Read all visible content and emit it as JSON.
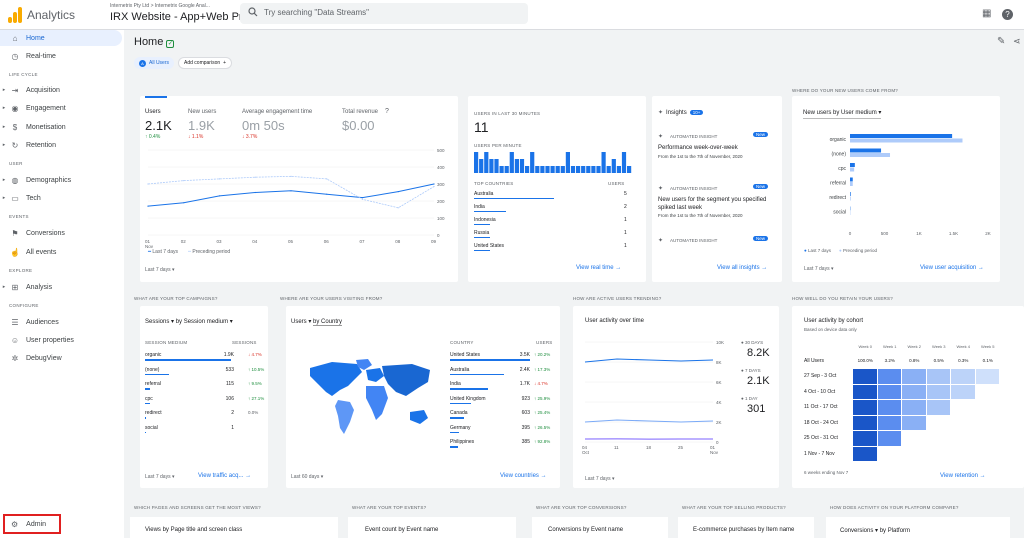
{
  "app": {
    "name": "Analytics",
    "account": "Internetrix Pty Ltd > Internetrix Google Anal...",
    "property": "IRX Website - App+Web Pro...",
    "search_placeholder": "Try searching \"Data Streams\""
  },
  "colors": {
    "primary": "#1a73e8",
    "light": "#aecbfa",
    "up": "#1e8e3e",
    "down": "#d93025"
  },
  "sidebar": {
    "home": "Home",
    "realtime": "Real-time",
    "lifecycle": "LIFE CYCLE",
    "acquisition": "Acquisition",
    "engagement": "Engagement",
    "monetisation": "Monetisation",
    "retention": "Retention",
    "user": "USER",
    "demographics": "Demographics",
    "tech": "Tech",
    "events": "EVENTS",
    "conversions": "Conversions",
    "all_events": "All events",
    "explore": "EXPLORE",
    "analysis": "Analysis",
    "configure": "CONFIGURE",
    "audiences": "Audiences",
    "user_properties": "User properties",
    "debugview": "DebugView",
    "admin": "Admin"
  },
  "page": {
    "title": "Home",
    "all_users": "All Users",
    "add_comparison": "Add comparison"
  },
  "overview": {
    "metrics": [
      {
        "label": "Users",
        "value": "2.1K",
        "change": "0.4%",
        "dir": "up"
      },
      {
        "label": "New users",
        "value": "1.9K",
        "change": "1.1%",
        "dir": "down"
      },
      {
        "label": "Average engagement time",
        "value": "0m 50s",
        "change": "3.7%",
        "dir": "down"
      },
      {
        "label": "Total revenue",
        "value": "$0.00",
        "change": "",
        "dir": ""
      }
    ],
    "xticks": [
      "01 Nov",
      "02",
      "03",
      "04",
      "05",
      "06",
      "07",
      "08",
      "09"
    ],
    "yticks": [
      "500",
      "400",
      "300",
      "200",
      "100",
      "0"
    ],
    "legend_current": "Last 7 days",
    "legend_prev": "Preceding period",
    "chart_data": {
      "type": "line",
      "x": [
        "01 Nov",
        "02",
        "03",
        "04",
        "05",
        "06",
        "07",
        "08",
        "09"
      ],
      "ylim": [
        0,
        500
      ],
      "series": [
        {
          "name": "Last 7 days",
          "values": [
            170,
            190,
            230,
            250,
            260,
            240,
            220,
            255,
            300
          ]
        },
        {
          "name": "Preceding period",
          "values": [
            300,
            320,
            330,
            340,
            345,
            330,
            210,
            160,
            285
          ]
        }
      ]
    },
    "date_range": "Last 7 days"
  },
  "realtime": {
    "header": "USERS IN LAST 30 MINUTES",
    "count": "11",
    "per_minute": "USERS PER MINUTE",
    "per_minute_values": [
      3,
      2,
      3,
      2,
      2,
      1,
      1,
      3,
      2,
      2,
      1,
      3,
      1,
      1,
      1,
      1,
      1,
      1,
      3,
      1,
      1,
      1,
      1,
      1,
      1,
      3,
      1,
      2,
      1,
      3,
      1
    ],
    "countries_header": "TOP COUNTRIES",
    "users_header": "USERS",
    "countries": [
      {
        "name": "Australia",
        "value": "5"
      },
      {
        "name": "India",
        "value": "2"
      },
      {
        "name": "Indonesia",
        "value": "1"
      },
      {
        "name": "Russia",
        "value": "1"
      },
      {
        "name": "United States",
        "value": "1"
      }
    ],
    "link": "View real time"
  },
  "insights": {
    "title": "Insights",
    "badge": "10+",
    "items": [
      {
        "tag": "AUTOMATED INSIGHT",
        "new": "New",
        "title": "Performance week-over-week",
        "sub": "From the 1st to the 7th of November, 2020"
      },
      {
        "tag": "AUTOMATED INSIGHT",
        "new": "New",
        "title": "New users for the segment you specified spiked last week",
        "sub": "From the 1st to the 7th of November, 2020"
      },
      {
        "tag": "AUTOMATED INSIGHT",
        "new": "New",
        "title": "",
        "sub": ""
      }
    ],
    "link": "View all insights"
  },
  "new_users": {
    "header": "WHERE DO YOUR NEW USERS COME FROM?",
    "selector": "New users by User medium",
    "chart_data": {
      "type": "bar",
      "categories": [
        "organic",
        "(none)",
        "cpc",
        "referral",
        "redirect",
        "social"
      ],
      "xlim": [
        0,
        2000
      ],
      "series": [
        {
          "name": "Last 7 days",
          "values": [
            1480,
            450,
            70,
            40,
            10,
            5
          ]
        },
        {
          "name": "Preceding period",
          "values": [
            1630,
            580,
            60,
            40,
            10,
            5
          ]
        }
      ]
    },
    "xticks": [
      "0",
      "500",
      "1K",
      "1.5K",
      "2K"
    ],
    "legend_current": "Last 7 days",
    "legend_prev": "Preceding period",
    "date_range": "Last 7 days",
    "link": "View user acquisition"
  },
  "campaigns": {
    "header": "WHAT ARE YOUR TOP CAMPAIGNS?",
    "selector": "Sessions",
    "selector2": "by Session medium",
    "col1": "SESSION MEDIUM",
    "col2": "SESSIONS",
    "rows": [
      {
        "name": "organic",
        "value": "1.9K",
        "change": "4.7%",
        "dir": "down",
        "frac": 1
      },
      {
        "name": "(none)",
        "value": "533",
        "change": "10.5%",
        "dir": "up",
        "frac": 0.28
      },
      {
        "name": "referral",
        "value": "115",
        "change": "9.5%",
        "dir": "up",
        "frac": 0.06
      },
      {
        "name": "cpc",
        "value": "106",
        "change": "27.1%",
        "dir": "up",
        "frac": 0.055
      },
      {
        "name": "redirect",
        "value": "2",
        "change": "0.0%",
        "dir": "",
        "frac": 0.001
      },
      {
        "name": "social",
        "value": "1",
        "change": "",
        "dir": "",
        "frac": 0
      }
    ],
    "date_range": "Last 7 days",
    "link": "View traffic acq..."
  },
  "countries": {
    "header": "WHERE ARE YOUR USERS VISITING FROM?",
    "selector": "Users",
    "selector2": "by Country",
    "col1": "COUNTRY",
    "col2": "USERS",
    "rows": [
      {
        "name": "United States",
        "value": "3.5K",
        "change": "20.2%",
        "dir": "up",
        "frac": 1
      },
      {
        "name": "Australia",
        "value": "2.4K",
        "change": "17.3%",
        "dir": "up",
        "frac": 0.68
      },
      {
        "name": "India",
        "value": "1.7K",
        "change": "4.7%",
        "dir": "down",
        "frac": 0.48
      },
      {
        "name": "United Kingdom",
        "value": "923",
        "change": "25.9%",
        "dir": "up",
        "frac": 0.26
      },
      {
        "name": "Canada",
        "value": "603",
        "change": "25.4%",
        "dir": "up",
        "frac": 0.17
      },
      {
        "name": "Germany",
        "value": "395",
        "change": "26.5%",
        "dir": "up",
        "frac": 0.11
      },
      {
        "name": "Philippines",
        "value": "385",
        "change": "92.8%",
        "dir": "up",
        "frac": 0.1
      }
    ],
    "date_range": "Last 60 days",
    "link": "View countries"
  },
  "trending": {
    "header": "HOW ARE ACTIVE USERS TRENDING?",
    "title": "User activity over time",
    "yticks": [
      "10K",
      "8K",
      "6K",
      "4K",
      "2K",
      "0"
    ],
    "xticks": [
      "04 Oct",
      "11",
      "18",
      "25",
      "01 Nov"
    ],
    "legend": [
      {
        "label": "30 DAYS",
        "value": "8.2K"
      },
      {
        "label": "7 DAYS",
        "value": "2.1K"
      },
      {
        "label": "1 DAY",
        "value": "301"
      }
    ],
    "chart_data": {
      "type": "line",
      "x": [
        "04 Oct",
        "11",
        "18",
        "25",
        "01 Nov"
      ],
      "ylim": [
        0,
        10000
      ],
      "series": [
        {
          "name": "30 DAYS",
          "values": [
            8000,
            8300,
            8200,
            8100,
            8200
          ]
        },
        {
          "name": "7 DAYS",
          "values": [
            2000,
            2200,
            2100,
            2000,
            2100
          ]
        },
        {
          "name": "1 DAY",
          "values": [
            300,
            310,
            290,
            300,
            301
          ]
        }
      ]
    },
    "date_range": "Last 7 days"
  },
  "retention": {
    "header": "HOW WELL DO YOU RETAIN YOUR USERS?",
    "title": "User activity by cohort",
    "sub": "Based on device data only",
    "weeks": [
      "Week 0",
      "Week 1",
      "Week 2",
      "Week 3",
      "Week 4",
      "Week 5"
    ],
    "all_label": "All Users",
    "all_values": [
      "100.0%",
      "3.2%",
      "0.8%",
      "0.5%",
      "0.3%",
      "0.1%"
    ],
    "cohorts": [
      "27 Sep - 3 Oct",
      "4 Oct - 10 Oct",
      "11 Oct - 17 Oct",
      "18 Oct - 24 Oct",
      "25 Oct - 31 Oct",
      "1 Nov - 7 Nov"
    ],
    "footer": "6 weeks ending Nov 7",
    "link": "View retention"
  },
  "bottom": [
    {
      "header": "WHICH PAGES AND SCREENS GET THE MOST VIEWS?",
      "sub": "Views by Page title and screen class"
    },
    {
      "header": "WHAT ARE YOUR TOP EVENTS?",
      "sub": "Event count by Event name"
    },
    {
      "header": "WHAT ARE YOUR TOP CONVERSIONS?",
      "sub": "Conversions by Event name"
    },
    {
      "header": "WHAT ARE YOUR TOP SELLING PRODUCTS?",
      "sub": "E-commerce purchases by Item name"
    },
    {
      "header": "HOW DOES ACTIVITY ON YOUR PLATFORM COMPARE?",
      "sub": "Conversions",
      "sub2": "by Platform"
    }
  ]
}
